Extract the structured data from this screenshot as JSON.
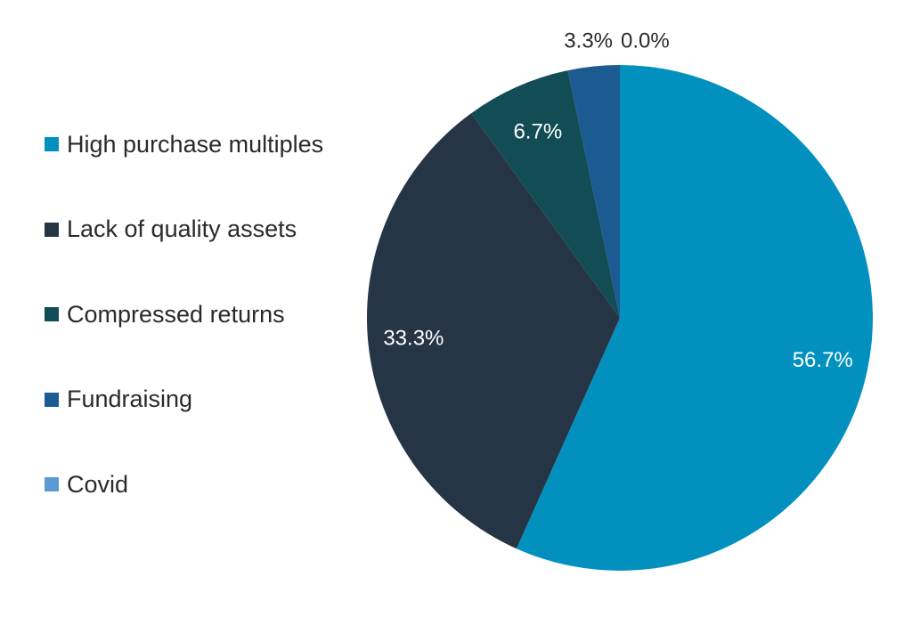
{
  "chart_data": {
    "type": "pie",
    "title": "",
    "legend_position": "left",
    "start_angle_deg": 0,
    "direction": "clockwise",
    "slices": [
      {
        "label": "High purchase multiples",
        "value": 56.7,
        "display": "56.7%",
        "color": "#0290bf",
        "label_color": "#ffffff",
        "label_placement": "inside"
      },
      {
        "label": "Lack of quality assets",
        "value": 33.3,
        "display": "33.3%",
        "color": "#263545",
        "label_color": "#ffffff",
        "label_placement": "inside"
      },
      {
        "label": "Compressed returns",
        "value": 6.7,
        "display": "6.7%",
        "color": "#124d55",
        "label_color": "#ffffff",
        "label_placement": "inside"
      },
      {
        "label": "Fundraising",
        "value": 3.3,
        "display": "3.3%",
        "color": "#1c5a92",
        "label_color": "#2a2a2a",
        "label_placement": "outside"
      },
      {
        "label": "Covid",
        "value": 0.0,
        "display": "0.0%",
        "color": "#5b9bd5",
        "label_color": "#2a2a2a",
        "label_placement": "outside"
      }
    ]
  }
}
